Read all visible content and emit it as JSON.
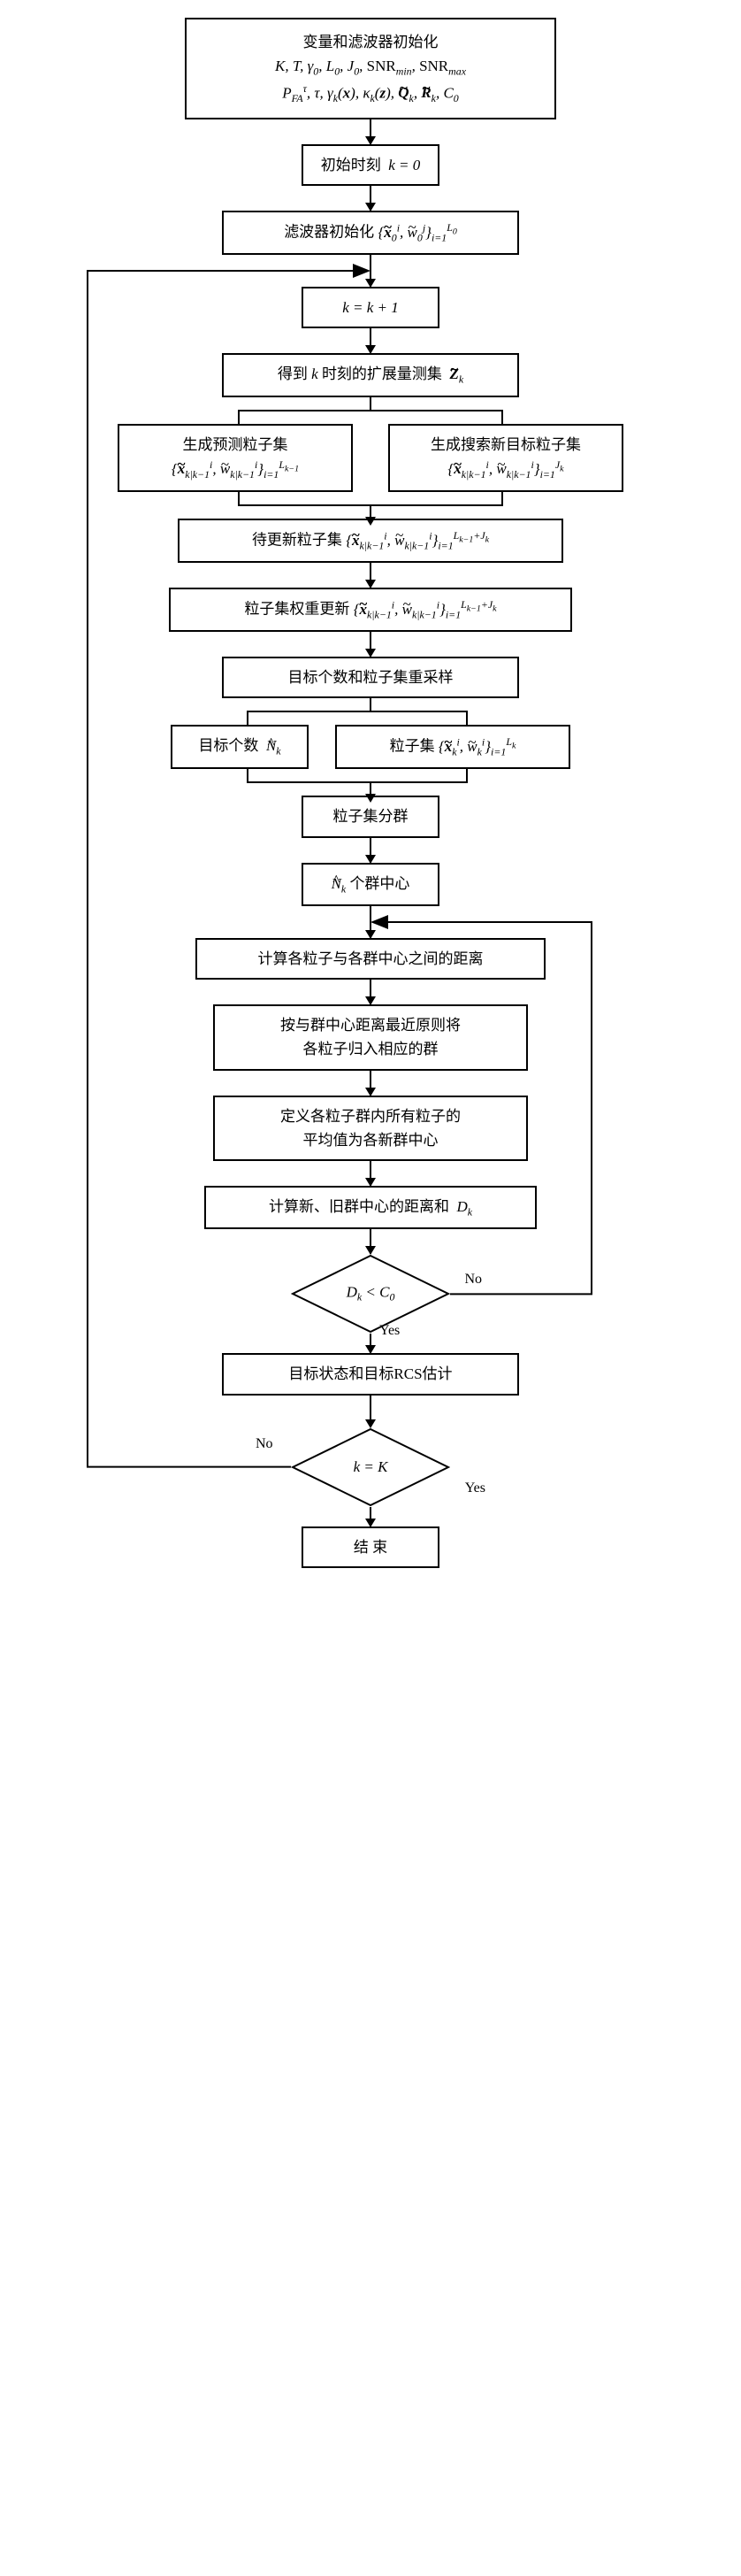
{
  "type": "flowchart",
  "background_color": "#ffffff",
  "stroke_color": "#000000",
  "font_family": "SimSun / Times New Roman",
  "base_fontsize": 17,
  "nodes": {
    "init": {
      "line1": "变量和滤波器初始化",
      "math1": "K, T, γ₀, L₀, J₀, SNR_min, SNR_max",
      "math2": "P_FA^τ, τ, γ_k(x), κ_k(z), Q̃_k, R̃_k, C₀"
    },
    "t0": {
      "text": "初始时刻",
      "math": "k = 0"
    },
    "filt_init": {
      "text": "滤波器初始化",
      "math": "{x̃₀ⁱ, w̃₀ʲ}_{i=1}^{L₀}"
    },
    "inc": {
      "math": "k = k + 1"
    },
    "meas": {
      "text_before": "得到",
      "mathA": "k",
      "text_mid": "时刻的扩展量测集",
      "mathB": "Z̃_k"
    },
    "pred": {
      "text": "生成预测粒子集",
      "math": "{x̃_{k|k-1}ⁱ, w̃_{k|k-1}ⁱ}_{i=1}^{L_{k-1}}"
    },
    "search": {
      "text": "生成搜索新目标粒子集",
      "math": "{x̃_{k|k-1}ⁱ, w̃_{k|k-1}ⁱ}_{i=1}^{J_k}"
    },
    "pending": {
      "text": "待更新粒子集",
      "math": "{x̃_{k|k-1}ⁱ, w̃_{k|k-1}ⁱ}_{i=1}^{L_{k-1}+J_k}"
    },
    "weight": {
      "text": "粒子集权重更新",
      "math": "{x̃_{k|k-1}ⁱ, w̃_{k|k-1}ⁱ}_{i=1}^{L_{k-1}+J_k}"
    },
    "resample": {
      "text": "目标个数和粒子集重采样"
    },
    "count": {
      "text": "目标个数",
      "math": "N̂_k"
    },
    "pset": {
      "text": "粒子集",
      "math": "{x̃_kⁱ, w̃_kⁱ}_{i=1}^{L_k}"
    },
    "cluster": {
      "text": "粒子集分群"
    },
    "centers": {
      "mathA": "N̂_k",
      "text": "个群中心"
    },
    "dist": {
      "text": "计算各粒子与各群中心之间的距离"
    },
    "assign": {
      "line1": "按与群中心距离最近原则将",
      "line2": "各粒子归入相应的群"
    },
    "newcenter": {
      "line1": "定义各粒子群内所有粒子的",
      "line2": "平均值为各新群中心"
    },
    "distsum": {
      "text": "计算新、旧群中心的距离和",
      "math": "D_k"
    },
    "cond1": {
      "math": "D_k < C₀",
      "yes": "Yes",
      "no": "No"
    },
    "estimate": {
      "text": "目标状态和目标RCS估计"
    },
    "cond2": {
      "math": "k = K",
      "yes": "Yes",
      "no": "No"
    },
    "end": {
      "text": "结 束"
    }
  },
  "decision_labels": {
    "yes": "Yes",
    "no": "No"
  }
}
